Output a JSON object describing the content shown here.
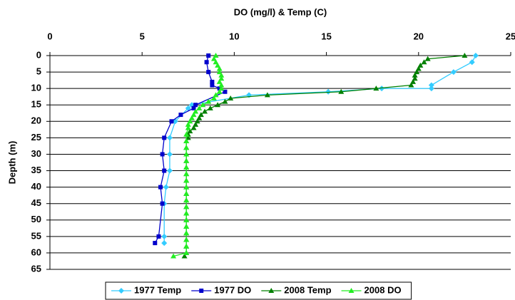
{
  "chart_data": {
    "type": "scatter-line",
    "title": "DO (mg/l) & Temp (C)",
    "ylabel": "Depth (m)",
    "xlim": [
      0,
      25
    ],
    "xticks": [
      0,
      5,
      10,
      15,
      20,
      25
    ],
    "x_axis_position": "top",
    "ylim": [
      0,
      65
    ],
    "yticks": [
      0,
      5,
      10,
      15,
      20,
      25,
      30,
      35,
      40,
      45,
      50,
      55,
      60,
      65
    ],
    "y_inverted": true,
    "grid": true,
    "legend": "bottom",
    "series": [
      {
        "name": "1977 Temp",
        "color": "#33ccff",
        "marker": "diamond",
        "x": [
          23.1,
          22.9,
          21.9,
          20.7,
          20.7,
          18.0,
          15.1,
          10.8,
          7.7,
          7.5,
          6.8,
          6.5,
          6.5,
          6.5,
          6.3,
          6.2,
          6.2,
          6.2
        ],
        "y": [
          0,
          2,
          5,
          9,
          10,
          10,
          11,
          12,
          15,
          16,
          20,
          25,
          30,
          35,
          40,
          45,
          55,
          57
        ]
      },
      {
        "name": "1977 DO",
        "color": "#0000cc",
        "marker": "square",
        "x": [
          8.6,
          8.5,
          8.6,
          8.8,
          8.8,
          9.2,
          9.5,
          7.9,
          7.8,
          7.1,
          6.6,
          6.2,
          6.1,
          6.2,
          6.0,
          6.1,
          5.9,
          5.7
        ],
        "y": [
          0,
          2,
          5,
          8,
          9,
          10,
          11,
          15,
          16,
          18,
          20,
          25,
          30,
          35,
          40,
          45,
          55,
          57
        ]
      },
      {
        "name": "2008 Temp",
        "color": "#008000",
        "marker": "triangle",
        "x": [
          22.5,
          20.5,
          20.3,
          20.1,
          20.0,
          19.9,
          19.8,
          19.8,
          19.7,
          19.6,
          17.7,
          15.8,
          11.8,
          9.8,
          9.5,
          9.1,
          8.7,
          8.4,
          8.2,
          8.1,
          8.0,
          7.9,
          7.8,
          7.6,
          7.5,
          7.5,
          7.4,
          7.4,
          7.4,
          7.4,
          7.4,
          7.4,
          7.4,
          7.4,
          7.4,
          7.4,
          7.4,
          7.4,
          7.4,
          7.4,
          7.4,
          7.4,
          7.4,
          7.4,
          7.3
        ],
        "y": [
          0,
          1,
          2,
          3,
          4,
          5,
          6,
          7,
          8,
          9,
          10,
          11,
          12,
          13,
          14,
          15,
          16,
          17,
          18,
          19,
          20,
          21,
          22,
          23,
          24,
          25,
          26,
          28,
          30,
          32,
          34,
          36,
          38,
          40,
          42,
          44,
          46,
          48,
          50,
          52,
          54,
          56,
          58,
          60,
          61
        ]
      },
      {
        "name": "2008 DO",
        "color": "#22ee22",
        "marker": "triangle",
        "x": [
          9.0,
          8.9,
          9.0,
          9.1,
          9.2,
          9.2,
          9.3,
          9.3,
          9.2,
          9.3,
          9.3,
          9.2,
          9.0,
          8.9,
          8.6,
          8.3,
          8.1,
          7.9,
          7.8,
          7.7,
          7.6,
          7.5,
          7.5,
          7.4,
          7.4,
          7.4,
          7.4,
          7.4,
          7.4,
          7.4,
          7.4,
          7.4,
          7.4,
          7.4,
          7.4,
          7.4,
          7.4,
          7.4,
          7.4,
          7.4,
          7.4,
          7.4,
          6.7
        ],
        "y": [
          0,
          1,
          2,
          3,
          4,
          5,
          6,
          7,
          8,
          9,
          10,
          11,
          12,
          13,
          14,
          15,
          16,
          17,
          18,
          19,
          20,
          21,
          22,
          24,
          26,
          28,
          30,
          32,
          34,
          36,
          38,
          40,
          42,
          44,
          46,
          48,
          50,
          52,
          54,
          56,
          58,
          60,
          61
        ]
      }
    ]
  }
}
